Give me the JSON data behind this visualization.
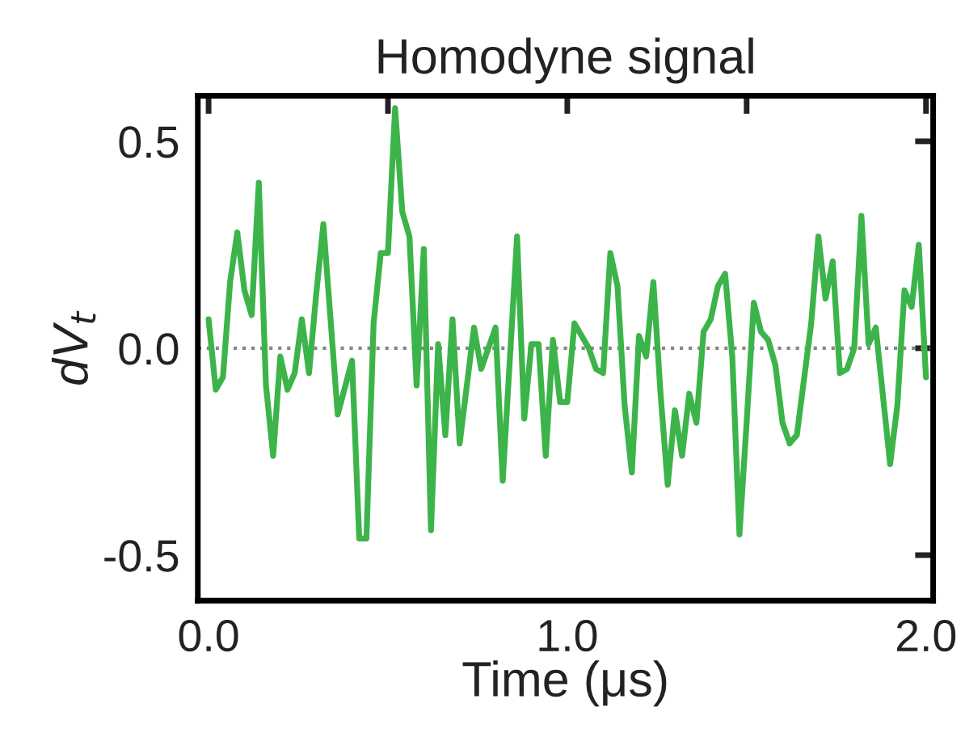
{
  "chart_data": {
    "type": "line",
    "title": "Homodyne signal",
    "xlabel": "Time (μs)",
    "ylabel": "dV$_{t}$",
    "series": [
      {
        "color": "#3cb44a",
        "x": [
          0.0,
          0.02,
          0.04,
          0.06,
          0.08,
          0.1,
          0.12,
          0.14,
          0.16,
          0.18,
          0.2,
          0.22,
          0.24,
          0.26,
          0.28,
          0.3,
          0.32,
          0.36,
          0.4,
          0.42,
          0.44,
          0.46,
          0.48,
          0.5,
          0.52,
          0.54,
          0.56,
          0.58,
          0.6,
          0.62,
          0.64,
          0.66,
          0.68,
          0.7,
          0.74,
          0.76,
          0.8,
          0.82,
          0.86,
          0.88,
          0.9,
          0.92,
          0.94,
          0.96,
          0.98,
          1.0,
          1.02,
          1.06,
          1.08,
          1.1,
          1.12,
          1.14,
          1.16,
          1.18,
          1.2,
          1.22,
          1.24,
          1.26,
          1.28,
          1.3,
          1.32,
          1.34,
          1.36,
          1.38,
          1.4,
          1.42,
          1.44,
          1.46,
          1.48,
          1.5,
          1.52,
          1.54,
          1.56,
          1.58,
          1.6,
          1.62,
          1.64,
          1.68,
          1.7,
          1.72,
          1.74,
          1.76,
          1.78,
          1.8,
          1.82,
          1.84,
          1.86,
          1.9,
          1.92,
          1.94,
          1.96,
          1.98,
          2.0
        ],
        "values": [
          0.07,
          -0.1,
          -0.07,
          0.16,
          0.28,
          0.14,
          0.08,
          0.4,
          -0.09,
          -0.26,
          -0.02,
          -0.1,
          -0.06,
          0.07,
          -0.06,
          0.13,
          0.3,
          -0.16,
          -0.03,
          -0.46,
          -0.46,
          0.06,
          0.23,
          0.23,
          0.58,
          0.33,
          0.27,
          -0.09,
          0.24,
          -0.44,
          0.01,
          -0.21,
          0.07,
          -0.23,
          0.05,
          -0.05,
          0.05,
          -0.32,
          0.27,
          -0.17,
          0.01,
          0.01,
          -0.26,
          0.02,
          -0.13,
          -0.13,
          0.06,
          0.0,
          -0.05,
          -0.06,
          0.23,
          0.15,
          -0.14,
          -0.3,
          0.03,
          -0.02,
          0.16,
          -0.11,
          -0.33,
          -0.15,
          -0.26,
          -0.11,
          -0.18,
          0.04,
          0.07,
          0.15,
          0.18,
          -0.02,
          -0.45,
          -0.18,
          0.11,
          0.04,
          0.02,
          -0.04,
          -0.18,
          -0.23,
          -0.21,
          0.06,
          0.27,
          0.12,
          0.21,
          -0.06,
          -0.05,
          0.0,
          0.32,
          0.01,
          0.05,
          -0.28,
          -0.14,
          0.14,
          0.1,
          0.25,
          -0.07
        ]
      }
    ],
    "xlim": [
      -0.03,
      2.02
    ],
    "xticks": [
      {
        "value": 0,
        "label": "0.0"
      },
      {
        "value": 0.5,
        "label": null
      },
      {
        "value": 1,
        "label": "1.0"
      },
      {
        "value": 1.5,
        "label": null
      },
      {
        "value": 2,
        "label": "2.0"
      }
    ],
    "ylim": [
      -0.61,
      0.61
    ],
    "yticks": [
      {
        "value": -0.5,
        "label": "-0.5"
      },
      {
        "value": 0,
        "label": "0.0"
      },
      {
        "value": 0.5,
        "label": "0.5"
      }
    ],
    "ref_lines": [
      {
        "axis": "y",
        "value": 0,
        "color": "#888888",
        "line_style": "dotted"
      }
    ],
    "grid": false,
    "legend": false,
    "line_style": "solid",
    "marker": "none"
  }
}
